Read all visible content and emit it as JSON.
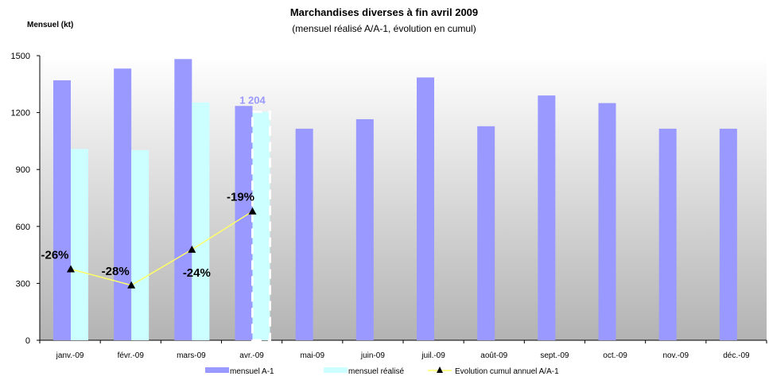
{
  "chart_data": {
    "type": "bar",
    "title": "Marchandises diverses à fin avril 2009",
    "subtitle": "(mensuel réalisé A/A-1, évolution en cumul)",
    "ylabel": "Mensuel (kt)",
    "ylim": [
      0,
      1500
    ],
    "yticks": [
      "0",
      "300",
      "600",
      "900",
      "1200",
      "1500"
    ],
    "categories": [
      "janv.-09",
      "févr.-09",
      "mars-09",
      "avr.-09",
      "mai-09",
      "juin-09",
      "juil.-09",
      "août-09",
      "sept.-09",
      "oct.-09",
      "nov.-09",
      "déc.-09"
    ],
    "series": [
      {
        "name": "mensuel A-1",
        "kind": "bar",
        "color": "#9999ff",
        "values": [
          1370,
          1432,
          1482,
          1235,
          1115,
          1165,
          1385,
          1128,
          1290,
          1250,
          1115,
          1115
        ]
      },
      {
        "name": "mensuel réalisé",
        "kind": "bar",
        "color": "#ccffff",
        "values": [
          1008,
          1002,
          1253,
          1204,
          null,
          null,
          null,
          null,
          null,
          null,
          null,
          null
        ]
      },
      {
        "name": "Evolution cumul annuel A/A-1",
        "kind": "line",
        "color": "#ffff66",
        "marker_color": "#000000",
        "values": [
          375,
          290,
          478,
          680,
          null,
          null,
          null,
          null,
          null,
          null,
          null,
          null
        ],
        "labels": [
          "-26%",
          "-28%",
          "-24%",
          "-19%"
        ]
      }
    ],
    "highlight": {
      "category_index": 3,
      "label": "1 204",
      "label_color": "#9999ff"
    },
    "grid": false,
    "legend_position": "bottom",
    "plot_background": "gradient-gray"
  }
}
